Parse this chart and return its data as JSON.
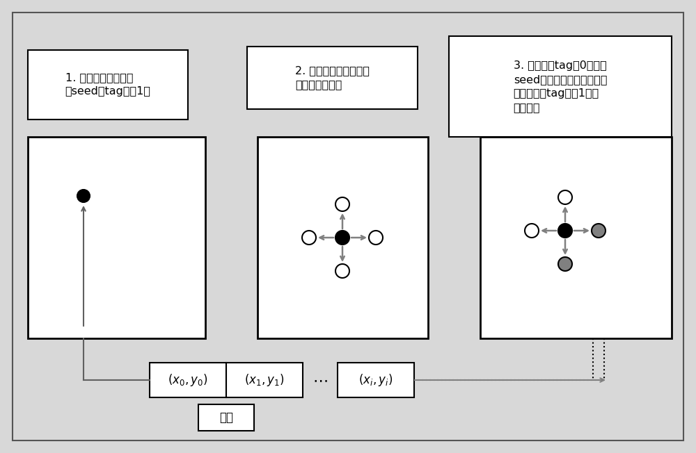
{
  "bg_color": "#d8d8d8",
  "text1": "1. 取出队首元素，记\n为seed，tag设为1。",
  "text2": "2. 以该像素为中心，向\n上下左右搜索。",
  "text3": "3. 若该像素tag为0，且与\nseed的像素値差小于阈値，\n则将该像素tag设为1，加\n入队列。",
  "queue_label": "队列",
  "arrow_color": "#808080",
  "dot_gray": "#808080"
}
